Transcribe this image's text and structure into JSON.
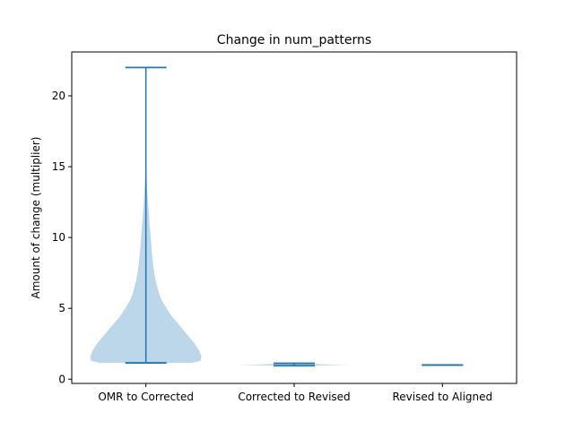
{
  "chart_data": {
    "type": "violin",
    "title": "Change in num_patterns",
    "xlabel": "",
    "ylabel": "Amount of change (multiplier)",
    "categories": [
      "OMR to Corrected",
      "Corrected to Revised",
      "Revised to Aligned"
    ],
    "ylim": [
      -0.3,
      23.1
    ],
    "yticks": [
      0,
      5,
      10,
      15,
      20
    ],
    "grid": false,
    "colors": {
      "body": "#bcd6ea",
      "line": "#1f77b4"
    },
    "violins": [
      {
        "name": "OMR to Corrected",
        "min": 1.15,
        "max": 22.0,
        "profile": [
          [
            1.15,
            0.62
          ],
          [
            1.3,
            0.74
          ],
          [
            1.6,
            0.75
          ],
          [
            2.0,
            0.72
          ],
          [
            2.5,
            0.66
          ],
          [
            3.0,
            0.58
          ],
          [
            3.5,
            0.5
          ],
          [
            4.0,
            0.42
          ],
          [
            4.5,
            0.34
          ],
          [
            5.0,
            0.28
          ],
          [
            5.5,
            0.22
          ],
          [
            6.0,
            0.18
          ],
          [
            7.0,
            0.13
          ],
          [
            8.0,
            0.1
          ],
          [
            9.0,
            0.08
          ],
          [
            10.0,
            0.065
          ],
          [
            11.0,
            0.05
          ],
          [
            12.0,
            0.035
          ],
          [
            13.0,
            0.022
          ],
          [
            14.0,
            0.012
          ],
          [
            15.0,
            0.006
          ],
          [
            17.0,
            0.003
          ],
          [
            19.0,
            0.002
          ],
          [
            21.0,
            0.002
          ],
          [
            22.0,
            0.002
          ]
        ]
      },
      {
        "name": "Corrected to Revised",
        "min": 0.95,
        "max": 1.12,
        "profile": [
          [
            0.95,
            0.15
          ],
          [
            1.0,
            0.75
          ],
          [
            1.05,
            0.4
          ],
          [
            1.12,
            0.15
          ]
        ]
      },
      {
        "name": "Revised to Aligned",
        "min": 1.0,
        "max": 1.0,
        "profile": []
      }
    ]
  }
}
